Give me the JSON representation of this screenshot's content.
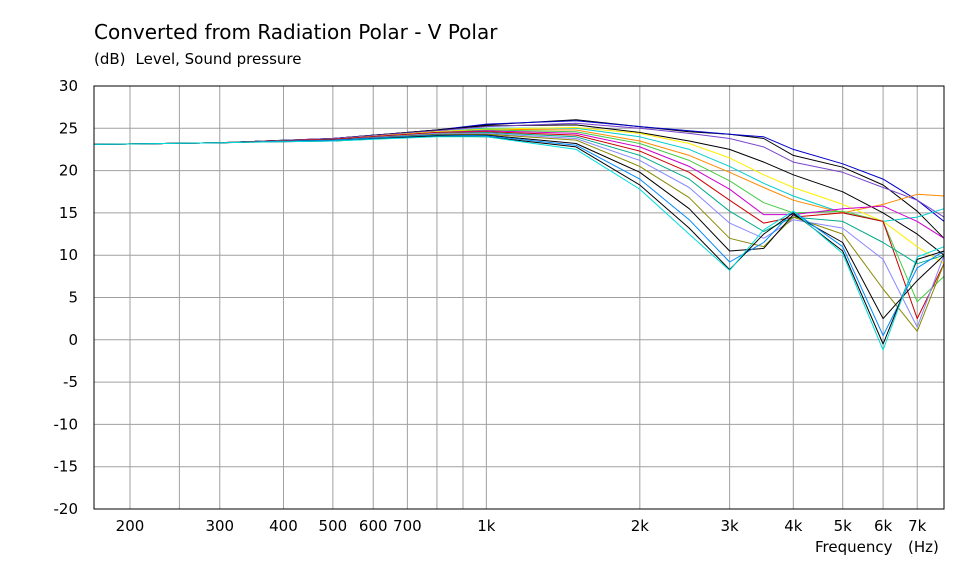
{
  "chart_data": {
    "type": "line",
    "title": "Converted from Radiation Polar - V Polar",
    "y_unit": "(dB)",
    "ylabel": "Level, Sound pressure",
    "xlabel": "Frequency",
    "x_unit": "(Hz)",
    "x_scale": "log",
    "xlim": [
      170,
      7900
    ],
    "ylim": [
      -20,
      30
    ],
    "grid": true,
    "y_ticks": [
      30,
      25,
      20,
      15,
      10,
      5,
      0,
      -5,
      -10,
      -15,
      -20
    ],
    "x_ticks": [
      {
        "value": 200,
        "label": "200"
      },
      {
        "value": 300,
        "label": "300"
      },
      {
        "value": 400,
        "label": "400"
      },
      {
        "value": 500,
        "label": "500"
      },
      {
        "value": 600,
        "label": "600"
      },
      {
        "value": 700,
        "label": "700"
      },
      {
        "value": 1000,
        "label": "1k"
      },
      {
        "value": 2000,
        "label": "2k"
      },
      {
        "value": 3000,
        "label": "3k"
      },
      {
        "value": 4000,
        "label": "4k"
      },
      {
        "value": 5000,
        "label": "5k"
      },
      {
        "value": 6000,
        "label": "6k"
      },
      {
        "value": 7000,
        "label": "7k"
      }
    ],
    "x_minor_gridlines": [
      250,
      800,
      900
    ],
    "series": [
      {
        "color": "#000000",
        "x": [
          170,
          300,
          500,
          800,
          1000,
          1500,
          2000,
          2500,
          3000,
          3500,
          4000,
          5000,
          6000,
          7000,
          7900
        ],
        "y": [
          23.1,
          23.3,
          23.8,
          24.8,
          25.4,
          26.0,
          25.2,
          24.6,
          24.3,
          23.8,
          21.8,
          20.4,
          18.3,
          15.2,
          12.0
        ]
      },
      {
        "color": "#0000cc",
        "x": [
          170,
          300,
          500,
          800,
          1000,
          1500,
          2000,
          2500,
          3000,
          3500,
          4000,
          5000,
          6000,
          7000,
          7900
        ],
        "y": [
          23.1,
          23.3,
          23.8,
          24.8,
          25.5,
          25.9,
          25.2,
          24.7,
          24.3,
          24.0,
          22.5,
          20.8,
          19.0,
          16.5,
          14.0
        ]
      },
      {
        "color": "#000000",
        "x": [
          170,
          300,
          500,
          800,
          1000,
          1500,
          2000,
          2500,
          3000,
          3500,
          4000,
          5000,
          6000,
          7000,
          7900
        ],
        "y": [
          23.1,
          23.3,
          23.8,
          24.8,
          25.3,
          25.4,
          24.5,
          23.5,
          22.5,
          21.0,
          19.5,
          17.5,
          15.0,
          12.5,
          10.0
        ]
      },
      {
        "color": "#7744cc",
        "x": [
          170,
          300,
          500,
          800,
          1000,
          1500,
          2000,
          2500,
          3000,
          3500,
          4000,
          5000,
          6000,
          7000,
          7900
        ],
        "y": [
          23.1,
          23.3,
          23.8,
          24.7,
          25.2,
          25.6,
          25.0,
          24.4,
          23.8,
          22.8,
          21.0,
          19.8,
          18.0,
          16.5,
          14.5
        ]
      },
      {
        "color": "#00cccc",
        "x": [
          170,
          300,
          500,
          800,
          1000,
          1500,
          2000,
          2500,
          3000,
          3500,
          4000,
          5000,
          6000,
          7000,
          7900
        ],
        "y": [
          23.1,
          23.3,
          23.7,
          24.6,
          25.0,
          25.0,
          24.0,
          22.5,
          20.5,
          18.5,
          17.0,
          15.0,
          14.0,
          14.5,
          15.5
        ]
      },
      {
        "color": "#ff8800",
        "x": [
          170,
          300,
          500,
          800,
          1000,
          1500,
          2000,
          2500,
          3000,
          3500,
          4000,
          5000,
          6000,
          7000,
          7900
        ],
        "y": [
          23.1,
          23.3,
          23.7,
          24.6,
          24.9,
          24.8,
          23.5,
          21.8,
          19.8,
          18.0,
          16.5,
          15.0,
          16.0,
          17.2,
          17.0
        ]
      },
      {
        "color": "#ffee00",
        "x": [
          170,
          300,
          500,
          800,
          1000,
          1500,
          2000,
          2500,
          3000,
          3500,
          4000,
          5000,
          6000,
          7000,
          7900
        ],
        "y": [
          23.1,
          23.3,
          23.7,
          24.6,
          24.9,
          25.1,
          24.4,
          23.2,
          21.5,
          19.5,
          18.0,
          16.0,
          14.0,
          11.0,
          9.0
        ]
      },
      {
        "color": "#44cc44",
        "x": [
          170,
          300,
          500,
          800,
          1000,
          1500,
          2000,
          2500,
          3000,
          3500,
          4000,
          5000,
          6000,
          7000,
          7900
        ],
        "y": [
          23.1,
          23.3,
          23.7,
          24.5,
          24.8,
          24.6,
          23.2,
          21.2,
          18.8,
          16.2,
          15.0,
          15.2,
          14.0,
          4.5,
          7.5
        ]
      },
      {
        "color": "#cc00cc",
        "x": [
          170,
          300,
          500,
          800,
          1000,
          1500,
          2000,
          2500,
          3000,
          3500,
          4000,
          5000,
          6000,
          7000,
          7900
        ],
        "y": [
          23.1,
          23.3,
          23.7,
          24.5,
          24.7,
          24.4,
          22.8,
          20.5,
          17.8,
          14.8,
          14.8,
          15.5,
          15.8,
          14.0,
          12.0
        ]
      },
      {
        "color": "#cc0000",
        "x": [
          170,
          300,
          500,
          800,
          1000,
          1500,
          2000,
          2500,
          3000,
          3500,
          4000,
          5000,
          6000,
          7000,
          7900
        ],
        "y": [
          23.1,
          23.3,
          23.7,
          24.5,
          24.6,
          24.2,
          22.3,
          19.8,
          16.5,
          13.8,
          14.5,
          15.0,
          14.0,
          2.5,
          9.0
        ]
      },
      {
        "color": "#00aa88",
        "x": [
          170,
          300,
          500,
          800,
          1000,
          1500,
          2000,
          2500,
          3000,
          3500,
          4000,
          5000,
          6000,
          7000,
          7900
        ],
        "y": [
          23.1,
          23.3,
          23.6,
          24.4,
          24.5,
          24.0,
          21.8,
          19.0,
          15.2,
          12.8,
          14.5,
          14.0,
          11.5,
          9.0,
          10.0
        ]
      },
      {
        "color": "#8888ff",
        "x": [
          170,
          300,
          500,
          800,
          1000,
          1500,
          2000,
          2500,
          3000,
          3500,
          4000,
          5000,
          6000,
          7000,
          7900
        ],
        "y": [
          23.1,
          23.3,
          23.6,
          24.4,
          24.4,
          23.8,
          21.2,
          18.0,
          13.8,
          12.0,
          14.2,
          13.2,
          9.5,
          1.5,
          10.0
        ]
      },
      {
        "color": "#888800",
        "x": [
          170,
          300,
          500,
          800,
          1000,
          1500,
          2000,
          2500,
          3000,
          3500,
          4000,
          5000,
          6000,
          7000,
          7900
        ],
        "y": [
          23.1,
          23.3,
          23.6,
          24.3,
          24.3,
          23.6,
          20.5,
          16.8,
          12.0,
          11.0,
          14.5,
          12.5,
          6.0,
          1.0,
          9.0
        ]
      },
      {
        "color": "#000000",
        "x": [
          170,
          300,
          500,
          800,
          1000,
          1500,
          2000,
          2500,
          3000,
          3500,
          4000,
          5000,
          6000,
          7000,
          7900
        ],
        "y": [
          23.1,
          23.3,
          23.6,
          24.2,
          24.2,
          23.2,
          19.8,
          15.5,
          10.5,
          10.8,
          14.8,
          11.5,
          2.5,
          7.0,
          10.0
        ]
      },
      {
        "color": "#0088ff",
        "x": [
          170,
          300,
          500,
          800,
          1000,
          1500,
          2000,
          2500,
          3000,
          3500,
          4000,
          5000,
          6000,
          7000,
          7900
        ],
        "y": [
          23.1,
          23.3,
          23.6,
          24.2,
          24.1,
          23.0,
          19.0,
          14.2,
          9.2,
          11.5,
          15.2,
          11.0,
          0.5,
          8.5,
          10.5
        ]
      },
      {
        "color": "#000000",
        "x": [
          170,
          300,
          500,
          800,
          1000,
          1500,
          2000,
          2500,
          3000,
          3500,
          4000,
          5000,
          6000,
          7000,
          7900
        ],
        "y": [
          23.1,
          23.3,
          23.5,
          24.1,
          24.0,
          22.8,
          18.3,
          13.2,
          8.3,
          12.5,
          15.0,
          10.5,
          -0.5,
          9.5,
          10.5
        ]
      },
      {
        "color": "#00dddd",
        "x": [
          170,
          300,
          500,
          800,
          1000,
          1500,
          2000,
          2500,
          3000,
          3500,
          4000,
          5000,
          6000,
          7000,
          7900
        ],
        "y": [
          23.1,
          23.3,
          23.5,
          24.0,
          24.0,
          22.5,
          17.8,
          12.5,
          8.2,
          13.0,
          15.2,
          10.2,
          -1.2,
          9.8,
          11.0
        ]
      }
    ]
  }
}
